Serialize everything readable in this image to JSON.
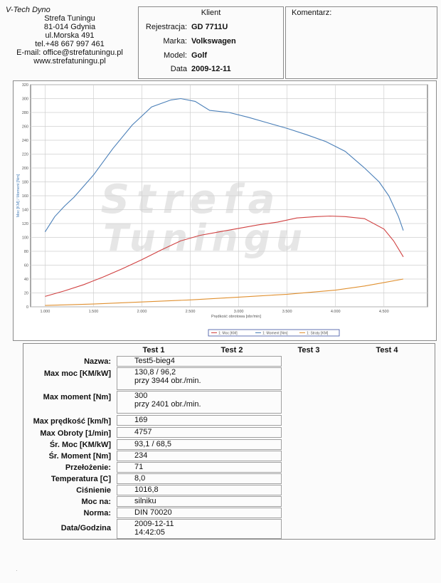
{
  "company": {
    "title": "V-Tech Dyno",
    "lines": [
      "Strefa Tuningu",
      "81-014 Gdynia",
      "ul.Morska 491",
      "tel.+48 667 997 461",
      "E-mail: office@strefatuningu.pl",
      "www.strefatuningu.pl"
    ]
  },
  "client": {
    "title": "Klient",
    "rows": [
      {
        "label": "Rejestracja:",
        "value": "GD 7711U"
      },
      {
        "label": "Marka:",
        "value": "Volkswagen"
      },
      {
        "label": "Model:",
        "value": "Golf"
      },
      {
        "label": "Data",
        "value": "2009-12-11"
      }
    ]
  },
  "comment": {
    "title": "Komentarz:"
  },
  "watermark": {
    "line1": "Strefa",
    "line2": "Tuningu"
  },
  "chart_data": {
    "type": "line",
    "xlabel": "Prędkość obrotowa [obr/min]",
    "ylabel": "Moc [KM] / Moment [Nm]",
    "xlim": [
      850,
      4950
    ],
    "ylim": [
      0,
      320
    ],
    "xticks": [
      1000,
      1500,
      2000,
      2500,
      3000,
      3500,
      4000,
      4500
    ],
    "xtick_labels": [
      "1.000",
      "1.500",
      "2.000",
      "2.500",
      "3.000",
      "3.500",
      "4.000",
      "4.500"
    ],
    "yticks": [
      0,
      20,
      40,
      60,
      80,
      100,
      120,
      140,
      160,
      180,
      200,
      220,
      240,
      260,
      280,
      300,
      320
    ],
    "grid": true,
    "legend_position": "bottom-center",
    "series": [
      {
        "name": "1: Moc [KM]",
        "color": "#d04040",
        "x": [
          1000,
          1200,
          1400,
          1600,
          1800,
          2000,
          2200,
          2400,
          2600,
          2800,
          3000,
          3200,
          3400,
          3600,
          3800,
          3944,
          4100,
          4300,
          4500,
          4600,
          4700
        ],
        "y": [
          15,
          23,
          32,
          43,
          55,
          68,
          82,
          95,
          103,
          108,
          113,
          118,
          122,
          128,
          130,
          130.8,
          130,
          127,
          112,
          95,
          72
        ]
      },
      {
        "name": "1: Moment [Nm]",
        "color": "#4a7fb8",
        "x": [
          1000,
          1100,
          1200,
          1300,
          1500,
          1700,
          1900,
          2100,
          2300,
          2401,
          2550,
          2700,
          2900,
          3100,
          3300,
          3500,
          3700,
          3900,
          4100,
          4300,
          4450,
          4550,
          4650,
          4700
        ],
        "y": [
          108,
          130,
          145,
          158,
          190,
          228,
          262,
          288,
          298,
          300,
          296,
          283,
          280,
          273,
          265,
          257,
          248,
          238,
          224,
          200,
          180,
          160,
          130,
          110
        ]
      },
      {
        "name": "1: Straty [KM]",
        "color": "#e09030",
        "x": [
          1000,
          1500,
          2000,
          2500,
          3000,
          3500,
          4000,
          4300,
          4500,
          4700
        ],
        "y": [
          2,
          4,
          7,
          10,
          14,
          18,
          24,
          30,
          35,
          40
        ]
      }
    ]
  },
  "table": {
    "headers": [
      "Test 1",
      "Test 2",
      "Test 3",
      "Test 4"
    ],
    "rows": [
      {
        "label": "Nazwa:",
        "value": "Test5-bieg4",
        "value2": ""
      },
      {
        "label": "Max moc [KM/kW]",
        "value": "130,8 / 96,2",
        "value2": "przy 3944 obr./min."
      },
      {
        "label": "Max moment [Nm]",
        "value": "300",
        "value2": "przy 2401 obr./min."
      },
      {
        "label": "Max prędkość [km/h]",
        "value": "169",
        "value2": ""
      },
      {
        "label": "Max Obroty [1/min]",
        "value": "4757",
        "value2": ""
      },
      {
        "label": "Śr. Moc [KM/kW]",
        "value": "93,1 / 68,5",
        "value2": ""
      },
      {
        "label": "Śr. Moment [Nm]",
        "value": "234",
        "value2": ""
      },
      {
        "label": "Przełożenie:",
        "value": "71",
        "value2": ""
      },
      {
        "label": "Temperatura [C]",
        "value": "8,0",
        "value2": ""
      },
      {
        "label": "Ciśnienie",
        "value": "1016,8",
        "value2": ""
      },
      {
        "label": "Moc na:",
        "value": "silniku",
        "value2": ""
      },
      {
        "label": "Norma:",
        "value": "DIN 70020",
        "value2": ""
      },
      {
        "label": "Data/Godzina",
        "value": "2009-12-11",
        "value2": "14:42:05"
      }
    ]
  }
}
